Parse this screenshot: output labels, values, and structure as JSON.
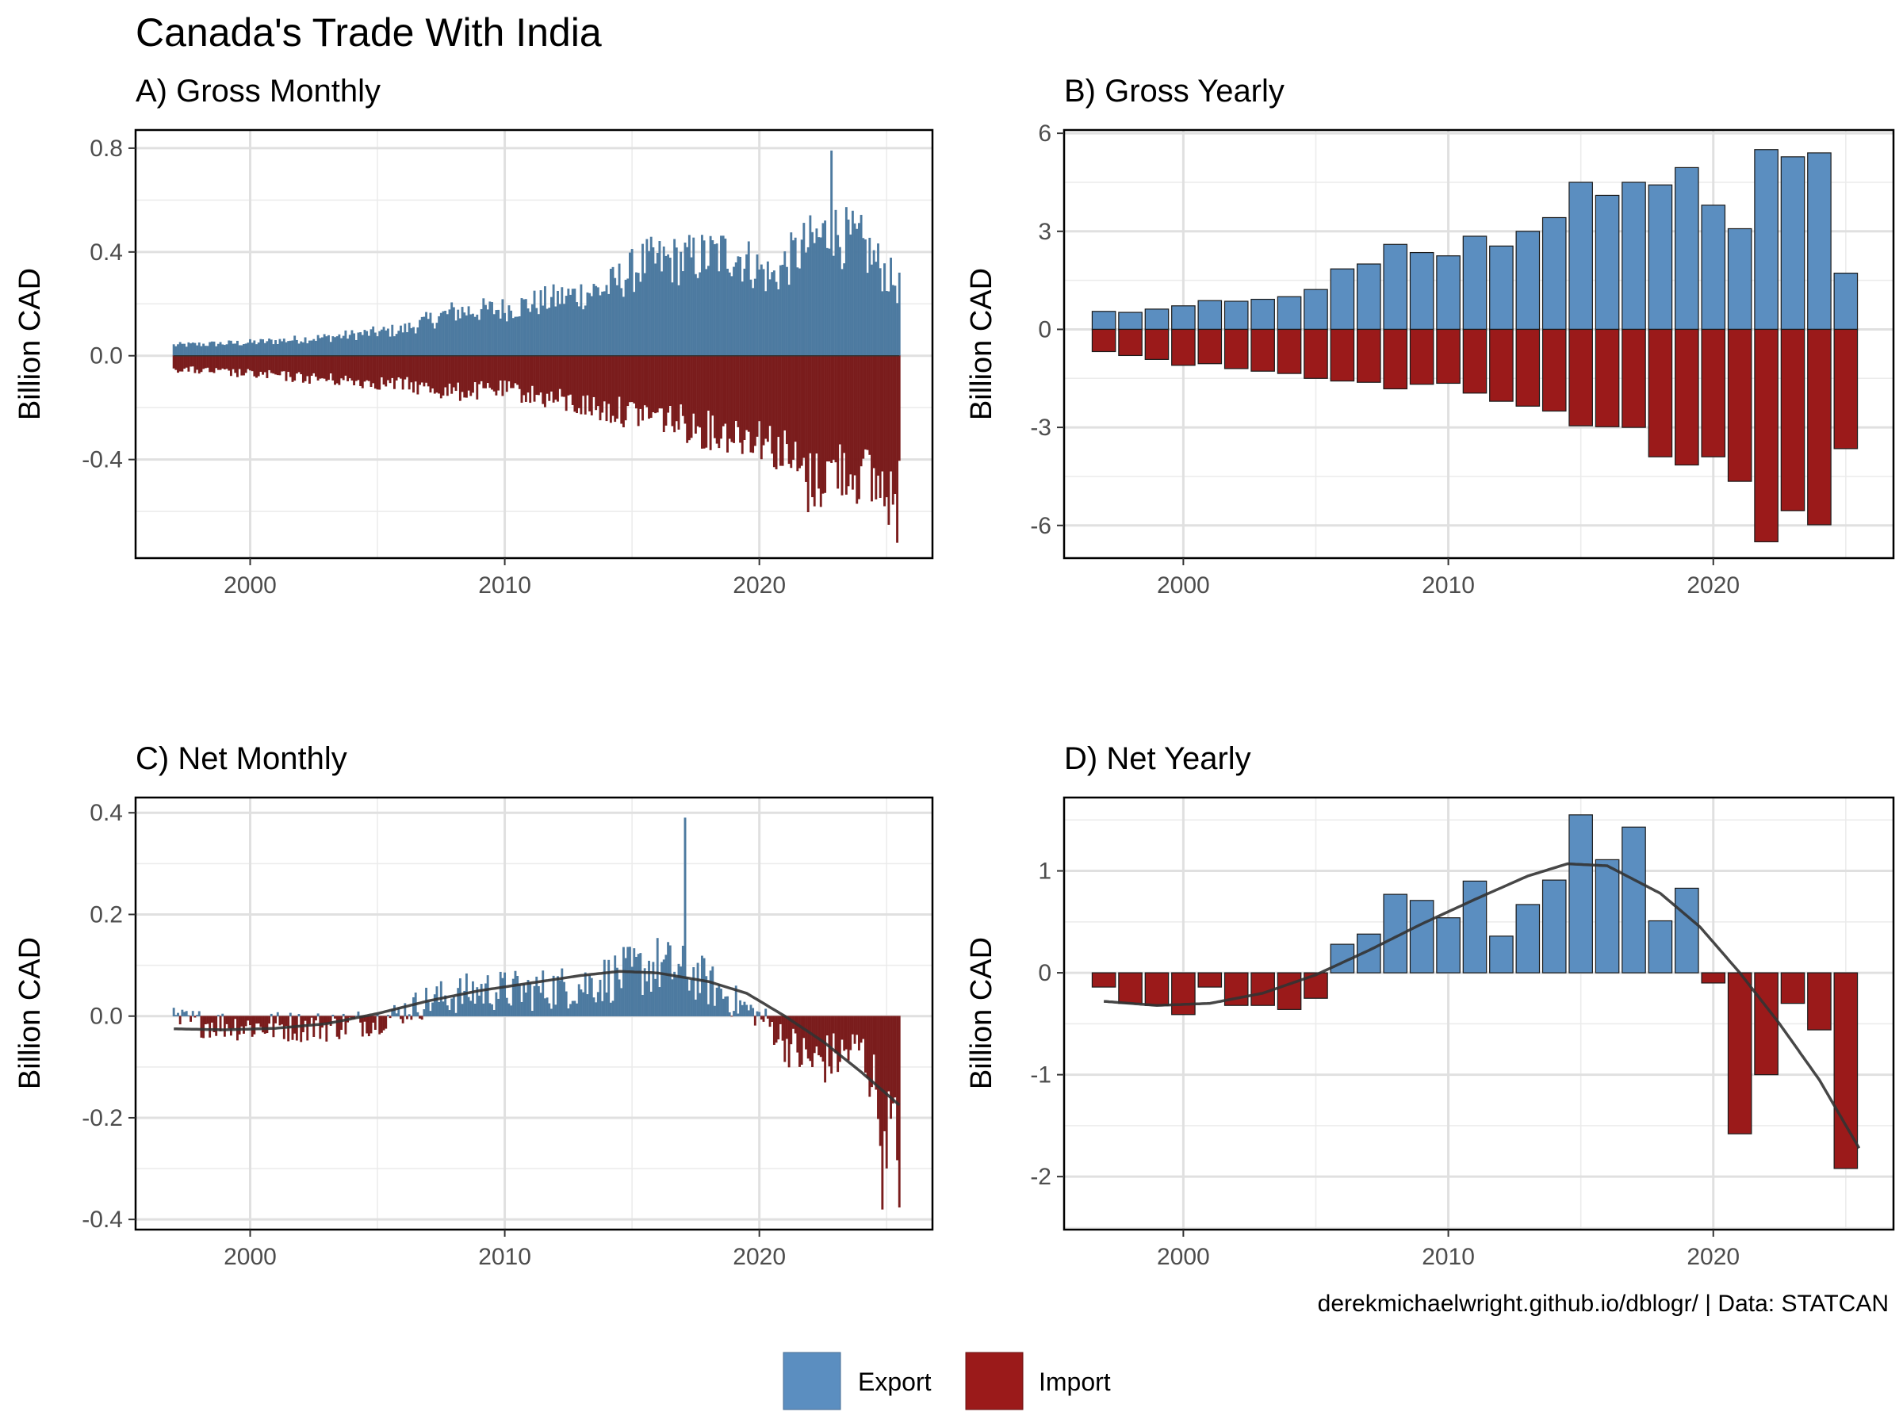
{
  "title": "Canada's Trade With India",
  "caption": "derekmichaelwright.github.io/dblogr/ | Data: STATCAN",
  "legend": {
    "items": [
      "Export",
      "Import"
    ]
  },
  "colors": {
    "export": "#4d7aa0",
    "import": "#7a1c1c",
    "export_yearly": "#5b8ec0",
    "import_yearly": "#9b1a1a",
    "smooth": "#333333"
  },
  "chart_data": [
    {
      "id": "A",
      "type": "bar",
      "title": "A) Gross Monthly",
      "ylabel": "Billion CAD",
      "xlim": [
        1995.5,
        2026.8
      ],
      "ylim": [
        -0.78,
        0.87
      ],
      "x_ticks": [
        2000,
        2010,
        2020
      ],
      "y_ticks": [
        -0.4,
        0.0,
        0.4,
        0.8
      ],
      "y_tick_labels": [
        "-0.4",
        "0.0",
        "0.4",
        "0.8"
      ],
      "monthly": true,
      "series": [
        {
          "name": "Export",
          "color": "#4d7aa0",
          "x_start": 1997,
          "x_end": 2025.5,
          "anchors_x": [
            1997,
            2000,
            2003,
            2006,
            2008,
            2010,
            2012,
            2014,
            2015.5,
            2017,
            2019,
            2020.5,
            2021.5,
            2022.8,
            2024,
            2025.5
          ],
          "anchors_y": [
            0.04,
            0.05,
            0.07,
            0.1,
            0.17,
            0.18,
            0.22,
            0.26,
            0.36,
            0.37,
            0.4,
            0.3,
            0.4,
            0.48,
            0.43,
            0.26
          ],
          "peak": 0.79
        },
        {
          "name": "Import",
          "color": "#7a1c1c",
          "x_start": 1997,
          "x_end": 2025.5,
          "anchors_x": [
            1997,
            2000,
            2003,
            2006,
            2008,
            2010,
            2012,
            2014,
            2016,
            2018,
            2020,
            2021,
            2022,
            2023,
            2024,
            2025.5
          ],
          "anchors_y": [
            -0.05,
            -0.07,
            -0.09,
            -0.11,
            -0.14,
            -0.13,
            -0.17,
            -0.21,
            -0.23,
            -0.29,
            -0.31,
            -0.38,
            -0.5,
            -0.43,
            -0.46,
            -0.55
          ],
          "peak": -0.72
        }
      ]
    },
    {
      "id": "B",
      "type": "bar",
      "title": "B) Gross Yearly",
      "ylabel": "Billion CAD",
      "xlim": [
        1995.5,
        2026.8
      ],
      "ylim": [
        -7.0,
        6.1
      ],
      "x_ticks": [
        2000,
        2010,
        2020
      ],
      "y_ticks": [
        -6,
        -3,
        0,
        3,
        6
      ],
      "y_tick_labels": [
        "-6",
        "-3",
        "0",
        "3",
        "6"
      ],
      "categories": [
        1997,
        1998,
        1999,
        2000,
        2001,
        2002,
        2003,
        2004,
        2005,
        2006,
        2007,
        2008,
        2009,
        2010,
        2011,
        2012,
        2013,
        2014,
        2015,
        2016,
        2017,
        2018,
        2019,
        2020,
        2021,
        2022,
        2023,
        2024,
        2025
      ],
      "series": [
        {
          "name": "Export",
          "color": "#5b8ec0",
          "values": [
            0.55,
            0.52,
            0.62,
            0.72,
            0.88,
            0.86,
            0.92,
            1.0,
            1.22,
            1.85,
            2.0,
            2.6,
            2.35,
            2.25,
            2.85,
            2.55,
            3.0,
            3.42,
            4.5,
            4.1,
            4.5,
            4.42,
            4.95,
            3.8,
            3.08,
            5.5,
            5.28,
            5.4,
            1.72
          ]
        },
        {
          "name": "Import",
          "color": "#9b1a1a",
          "values": [
            -0.68,
            -0.8,
            -0.92,
            -1.1,
            -1.05,
            -1.2,
            -1.28,
            -1.35,
            -1.5,
            -1.58,
            -1.62,
            -1.82,
            -1.68,
            -1.65,
            -1.95,
            -2.2,
            -2.35,
            -2.5,
            -2.95,
            -2.98,
            -3.0,
            -3.9,
            -4.15,
            -3.9,
            -4.65,
            -6.5,
            -5.55,
            -5.98,
            -3.65
          ]
        }
      ]
    },
    {
      "id": "C",
      "type": "bar",
      "title": "C) Net Monthly",
      "ylabel": "Billion CAD",
      "xlim": [
        1995.5,
        2026.8
      ],
      "ylim": [
        -0.42,
        0.43
      ],
      "x_ticks": [
        2000,
        2010,
        2020
      ],
      "y_ticks": [
        -0.4,
        -0.2,
        0.0,
        0.2,
        0.4
      ],
      "y_tick_labels": [
        "-0.4",
        "-0.2",
        "0.0",
        "0.2",
        "0.4"
      ],
      "monthly": true,
      "net": true,
      "series": [
        {
          "name": "Export",
          "color": "#4d7aa0"
        },
        {
          "name": "Import",
          "color": "#7a1c1c"
        }
      ],
      "net_anchors_x": [
        1997,
        2000,
        2003,
        2005,
        2007,
        2009,
        2011,
        2013,
        2014.5,
        2016,
        2017.5,
        2019,
        2020.3,
        2021,
        2022,
        2023,
        2024,
        2025.5
      ],
      "net_anchors_y": [
        -0.01,
        -0.02,
        -0.02,
        -0.01,
        0.03,
        0.05,
        0.05,
        0.06,
        0.08,
        0.1,
        0.08,
        0.03,
        -0.01,
        -0.05,
        -0.09,
        -0.08,
        -0.06,
        -0.28
      ],
      "net_spread": 0.06,
      "smooth": {
        "x": [
          1997,
          1999,
          2001,
          2003,
          2005,
          2007,
          2009,
          2011,
          2013,
          2014.5,
          2016,
          2018,
          2019.5,
          2021,
          2022.5,
          2024,
          2025.5
        ],
        "y": [
          -0.025,
          -0.027,
          -0.024,
          -0.015,
          0.005,
          0.03,
          0.05,
          0.065,
          0.08,
          0.088,
          0.085,
          0.068,
          0.045,
          0.0,
          -0.05,
          -0.11,
          -0.175
        ]
      }
    },
    {
      "id": "D",
      "type": "bar",
      "title": "D) Net Yearly",
      "ylabel": "Billion CAD",
      "xlim": [
        1995.5,
        2026.8
      ],
      "ylim": [
        -2.52,
        1.72
      ],
      "x_ticks": [
        2000,
        2010,
        2020
      ],
      "y_ticks": [
        -2,
        -1,
        0,
        1
      ],
      "y_tick_labels": [
        "-2",
        "-1",
        "0",
        "1"
      ],
      "categories": [
        1997,
        1998,
        1999,
        2000,
        2001,
        2002,
        2003,
        2004,
        2005,
        2006,
        2007,
        2008,
        2009,
        2010,
        2011,
        2012,
        2013,
        2014,
        2015,
        2016,
        2017,
        2018,
        2019,
        2020,
        2021,
        2022,
        2023,
        2024,
        2025
      ],
      "values": [
        -0.14,
        -0.3,
        -0.32,
        -0.41,
        -0.14,
        -0.32,
        -0.32,
        -0.36,
        -0.25,
        0.28,
        0.38,
        0.77,
        0.71,
        0.54,
        0.9,
        0.36,
        0.67,
        0.91,
        1.55,
        1.11,
        1.43,
        0.51,
        0.83,
        -0.1,
        -1.58,
        -1.0,
        -0.3,
        -0.56,
        -1.92
      ],
      "smooth": {
        "x": [
          1997,
          1999,
          2001,
          2003,
          2005,
          2007,
          2009,
          2011,
          2013,
          2014.5,
          2016,
          2018,
          2019.5,
          2021,
          2022.5,
          2024,
          2025.5
        ],
        "y": [
          -0.28,
          -0.32,
          -0.3,
          -0.2,
          -0.02,
          0.22,
          0.48,
          0.72,
          0.95,
          1.07,
          1.05,
          0.78,
          0.45,
          0.0,
          -0.5,
          -1.05,
          -1.72
        ]
      }
    }
  ]
}
